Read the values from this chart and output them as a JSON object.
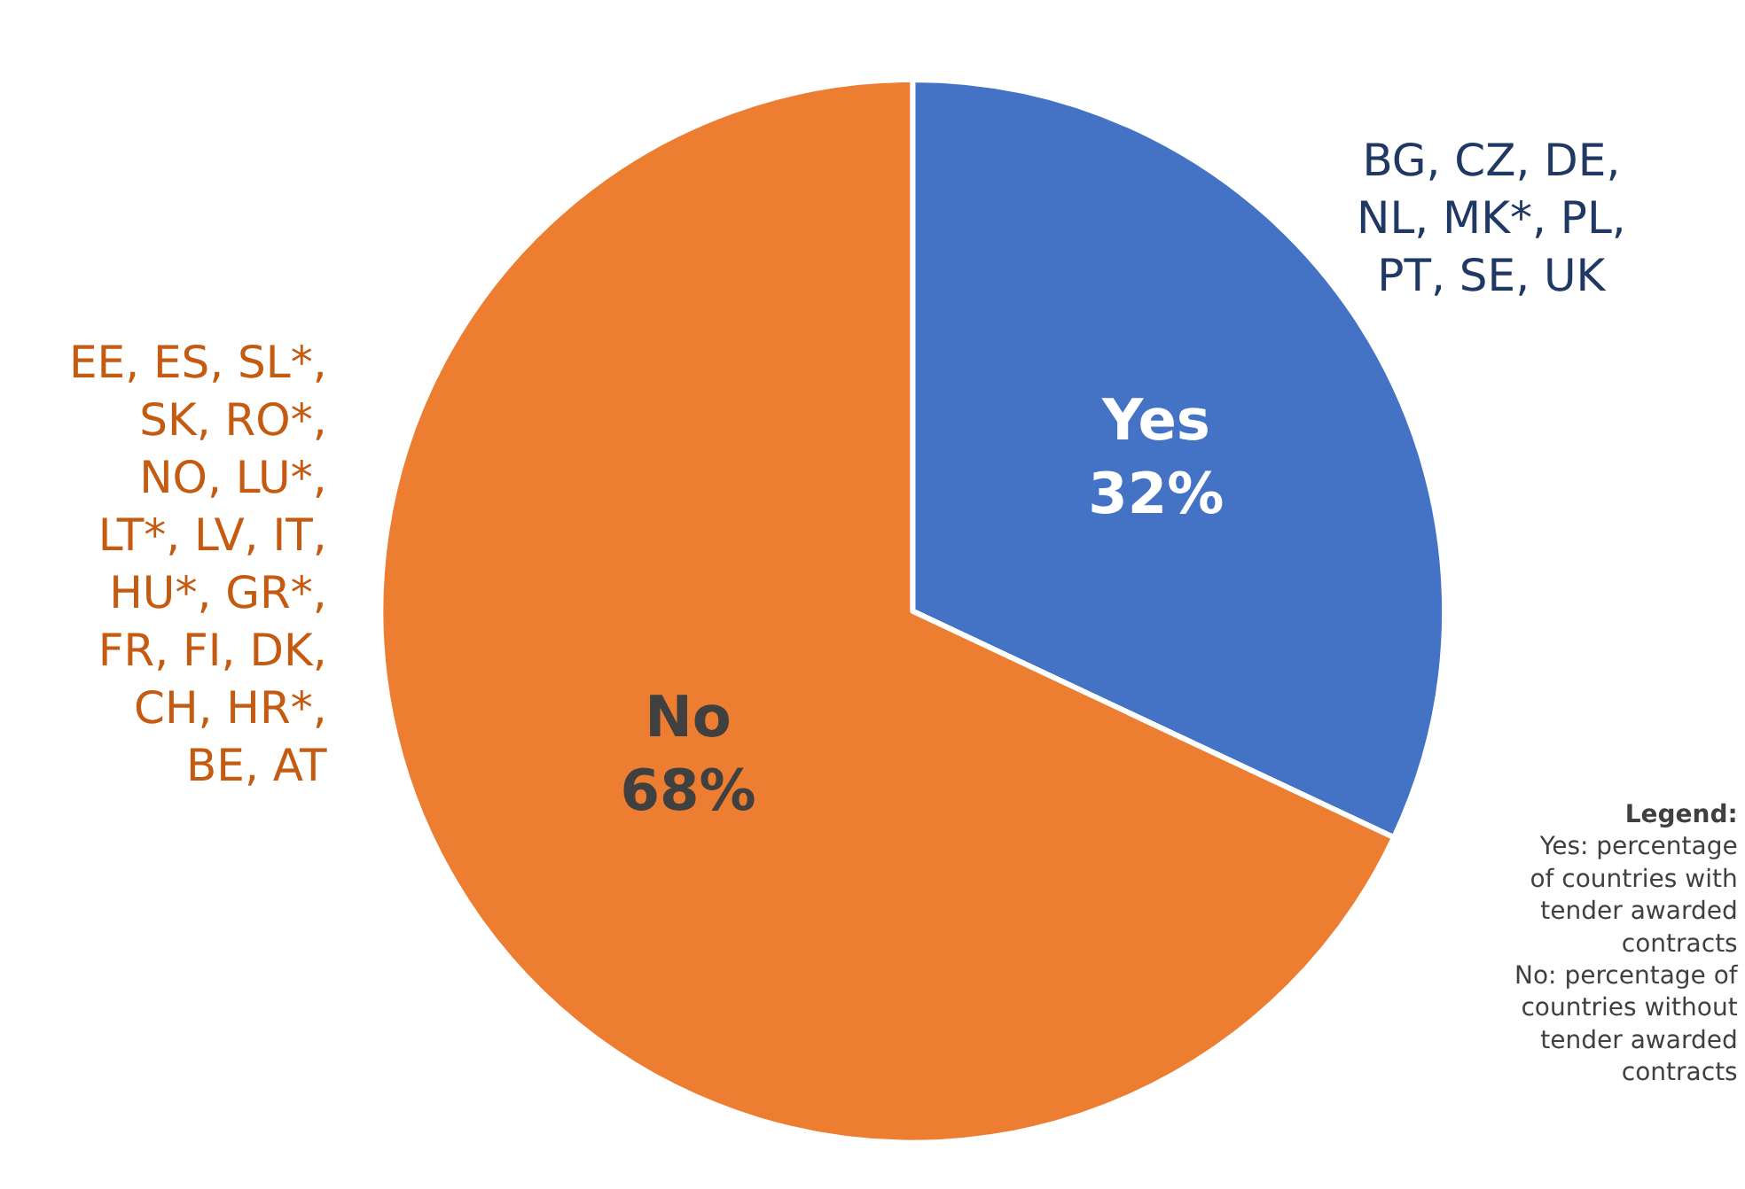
{
  "chart_data": {
    "type": "pie",
    "categories": [
      "Yes",
      "No"
    ],
    "values": [
      32,
      68
    ],
    "colors": [
      "#4472c4",
      "#ed7d31"
    ],
    "value_labels": [
      "32%",
      "68%"
    ],
    "legend": false,
    "annotations": [
      "BG, CZ, DE,\nNL, MK*, PL,\nPT, SE, UK",
      "EE, ES, SL*,\nSK, RO*,\nNO, LU*,\nLT*, LV, IT,\nHU*, GR*,\nFR, FI, DK,\nCH, HR*,\nBE, AT",
      "Legend:\nYes: percentage\nof countries with\ntender awarded\ncontracts\nNo: percentage of\ncountries without\ntender awarded\ncontracts"
    ]
  }
}
